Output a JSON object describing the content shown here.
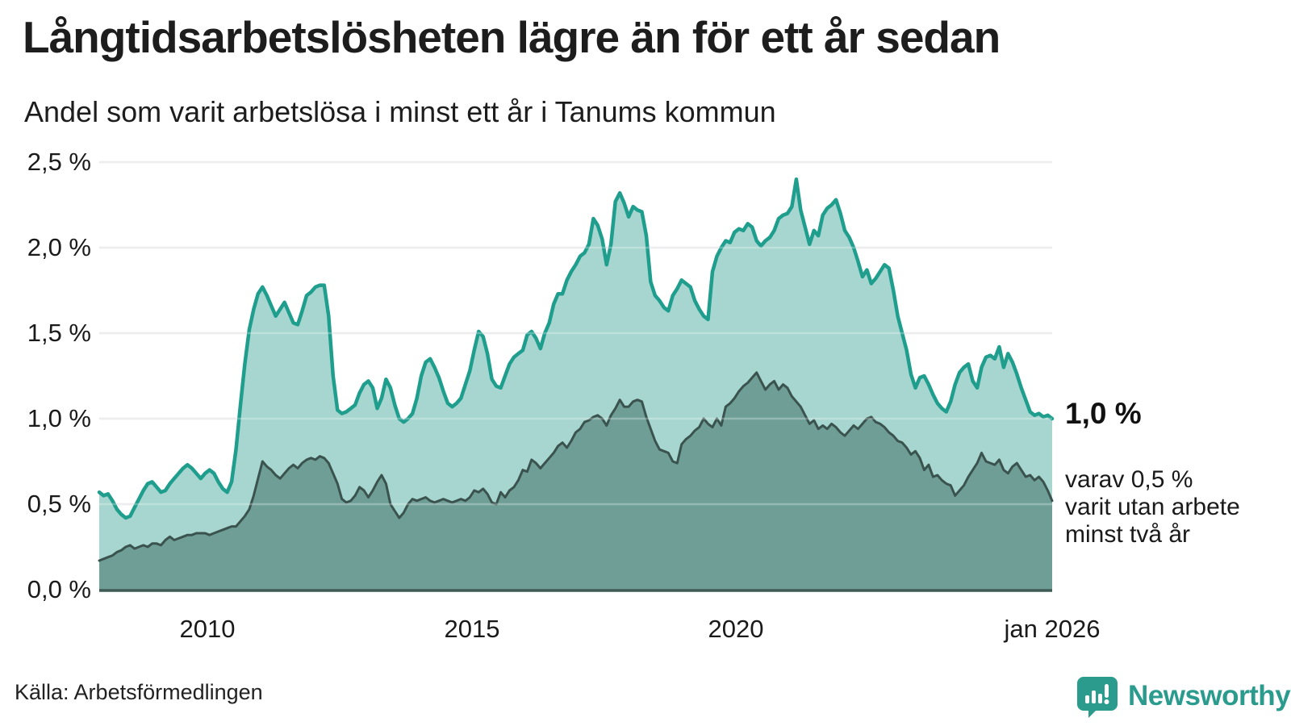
{
  "header": {
    "title": "Långtidsarbetslösheten lägre än för ett år sedan",
    "subtitle": "Andel som varit arbetslösa i minst ett år i Tanums kommun"
  },
  "annotations": {
    "latest_total": "1,0 %",
    "secondary_line1": "varav 0,5 %",
    "secondary_line2": "varit utan arbete",
    "secondary_line3": "minst två år"
  },
  "source": {
    "label": "Källa: Arbetsförmedlingen"
  },
  "branding": {
    "name": "Newsworthy",
    "logo_icon": "bar-chart-speech-bubble-icon",
    "color": "#2b9b8e"
  },
  "colors": {
    "series1_line": "#1f9e8e",
    "series1_fill": "#a6d6cf",
    "series2_line": "#3b534e",
    "series2_fill": "#6f9e97",
    "gridline": "#e6e6ea",
    "baseline": "#3f5b55",
    "text": "#1a1a1a",
    "background": "#ffffff"
  },
  "chart_data": {
    "type": "area",
    "title": "Långtidsarbetslösheten lägre än för ett år sedan",
    "subtitle": "Andel som varit arbetslösa i minst ett år i Tanums kommun",
    "unit": "%",
    "interval": "monthly",
    "x_start": "2008-01",
    "x_end": "2026-01",
    "ylim": [
      0,
      2.5
    ],
    "grid": true,
    "legend": "none",
    "yticks": [
      {
        "value": 2.5,
        "label": "2,5 %"
      },
      {
        "value": 2.0,
        "label": "2,0 %"
      },
      {
        "value": 1.5,
        "label": "1,5 %"
      },
      {
        "value": 1.0,
        "label": "1,0 %"
      },
      {
        "value": 0.5,
        "label": "0,5 %"
      },
      {
        "value": 0.0,
        "label": "0,0 %"
      }
    ],
    "xticks": [
      {
        "month_index": 24,
        "label": "2010"
      },
      {
        "month_index": 84,
        "label": "2015"
      },
      {
        "month_index": 144,
        "label": "2020"
      },
      {
        "month_index": 216,
        "label": "jan 2026"
      }
    ],
    "series": [
      {
        "name": "Andel som varit arbetslösa i minst ett år",
        "latest_value": 1.0,
        "values": [
          0.57,
          0.55,
          0.56,
          0.52,
          0.47,
          0.44,
          0.42,
          0.43,
          0.48,
          0.53,
          0.58,
          0.62,
          0.63,
          0.6,
          0.57,
          0.58,
          0.62,
          0.65,
          0.68,
          0.71,
          0.73,
          0.71,
          0.68,
          0.65,
          0.68,
          0.7,
          0.68,
          0.63,
          0.59,
          0.57,
          0.63,
          0.82,
          1.08,
          1.32,
          1.52,
          1.64,
          1.73,
          1.77,
          1.72,
          1.66,
          1.6,
          1.64,
          1.68,
          1.62,
          1.56,
          1.55,
          1.63,
          1.72,
          1.74,
          1.77,
          1.78,
          1.78,
          1.6,
          1.25,
          1.05,
          1.03,
          1.04,
          1.06,
          1.08,
          1.15,
          1.2,
          1.22,
          1.18,
          1.06,
          1.12,
          1.23,
          1.18,
          1.08,
          1.0,
          0.98,
          1.0,
          1.03,
          1.12,
          1.25,
          1.33,
          1.35,
          1.3,
          1.24,
          1.16,
          1.09,
          1.07,
          1.09,
          1.12,
          1.2,
          1.28,
          1.4,
          1.51,
          1.48,
          1.38,
          1.23,
          1.19,
          1.18,
          1.25,
          1.32,
          1.36,
          1.38,
          1.4,
          1.49,
          1.51,
          1.47,
          1.41,
          1.5,
          1.56,
          1.67,
          1.73,
          1.73,
          1.81,
          1.86,
          1.9,
          1.95,
          1.97,
          2.02,
          2.17,
          2.13,
          2.05,
          1.9,
          2.02,
          2.27,
          2.32,
          2.26,
          2.18,
          2.24,
          2.22,
          2.21,
          2.07,
          1.8,
          1.72,
          1.69,
          1.65,
          1.63,
          1.72,
          1.76,
          1.81,
          1.79,
          1.77,
          1.69,
          1.64,
          1.6,
          1.58,
          1.86,
          1.95,
          2.0,
          2.04,
          2.03,
          2.09,
          2.11,
          2.1,
          2.14,
          2.12,
          2.04,
          2.01,
          2.04,
          2.06,
          2.1,
          2.17,
          2.19,
          2.2,
          2.24,
          2.4,
          2.22,
          2.12,
          2.02,
          2.1,
          2.07,
          2.19,
          2.23,
          2.25,
          2.28,
          2.2,
          2.1,
          2.06,
          2.0,
          1.92,
          1.83,
          1.87,
          1.79,
          1.82,
          1.86,
          1.9,
          1.88,
          1.75,
          1.6,
          1.5,
          1.4,
          1.26,
          1.18,
          1.24,
          1.25,
          1.2,
          1.14,
          1.09,
          1.06,
          1.04,
          1.1,
          1.2,
          1.27,
          1.3,
          1.32,
          1.22,
          1.18,
          1.3,
          1.36,
          1.37,
          1.35,
          1.42,
          1.3,
          1.38,
          1.33,
          1.26,
          1.18,
          1.11,
          1.04,
          1.02,
          1.03,
          1.01,
          1.02,
          1.0
        ]
      },
      {
        "name": "varav varit utan arbete minst två år",
        "latest_value": 0.5,
        "values": [
          0.17,
          0.18,
          0.19,
          0.2,
          0.22,
          0.23,
          0.25,
          0.26,
          0.24,
          0.25,
          0.26,
          0.25,
          0.27,
          0.27,
          0.26,
          0.29,
          0.31,
          0.29,
          0.3,
          0.31,
          0.32,
          0.32,
          0.33,
          0.33,
          0.33,
          0.32,
          0.33,
          0.34,
          0.35,
          0.36,
          0.37,
          0.37,
          0.4,
          0.43,
          0.47,
          0.55,
          0.65,
          0.75,
          0.72,
          0.7,
          0.67,
          0.65,
          0.68,
          0.71,
          0.73,
          0.71,
          0.74,
          0.76,
          0.77,
          0.76,
          0.78,
          0.77,
          0.74,
          0.68,
          0.62,
          0.53,
          0.51,
          0.52,
          0.55,
          0.6,
          0.58,
          0.54,
          0.58,
          0.63,
          0.67,
          0.62,
          0.5,
          0.46,
          0.42,
          0.45,
          0.5,
          0.53,
          0.52,
          0.53,
          0.54,
          0.52,
          0.51,
          0.52,
          0.53,
          0.52,
          0.51,
          0.52,
          0.53,
          0.52,
          0.54,
          0.58,
          0.57,
          0.59,
          0.56,
          0.51,
          0.5,
          0.57,
          0.54,
          0.58,
          0.6,
          0.64,
          0.7,
          0.69,
          0.76,
          0.74,
          0.71,
          0.74,
          0.77,
          0.8,
          0.84,
          0.86,
          0.83,
          0.87,
          0.92,
          0.94,
          0.98,
          0.99,
          1.01,
          1.02,
          1.0,
          0.96,
          1.02,
          1.06,
          1.11,
          1.07,
          1.07,
          1.1,
          1.11,
          1.1,
          1.01,
          0.94,
          0.87,
          0.82,
          0.81,
          0.8,
          0.75,
          0.74,
          0.85,
          0.88,
          0.9,
          0.93,
          0.95,
          1.0,
          0.97,
          0.95,
          1.0,
          0.96,
          1.07,
          1.09,
          1.12,
          1.16,
          1.19,
          1.21,
          1.24,
          1.27,
          1.22,
          1.17,
          1.2,
          1.22,
          1.17,
          1.2,
          1.18,
          1.13,
          1.1,
          1.07,
          1.02,
          0.97,
          0.99,
          0.94,
          0.96,
          0.94,
          0.97,
          0.95,
          0.92,
          0.9,
          0.93,
          0.96,
          0.94,
          0.97,
          1.0,
          1.01,
          0.98,
          0.97,
          0.95,
          0.92,
          0.9,
          0.87,
          0.86,
          0.83,
          0.79,
          0.81,
          0.77,
          0.7,
          0.73,
          0.66,
          0.67,
          0.64,
          0.62,
          0.61,
          0.55,
          0.58,
          0.61,
          0.66,
          0.7,
          0.74,
          0.8,
          0.75,
          0.74,
          0.73,
          0.76,
          0.7,
          0.68,
          0.72,
          0.74,
          0.7,
          0.66,
          0.67,
          0.64,
          0.66,
          0.63,
          0.58,
          0.52
        ]
      }
    ]
  }
}
